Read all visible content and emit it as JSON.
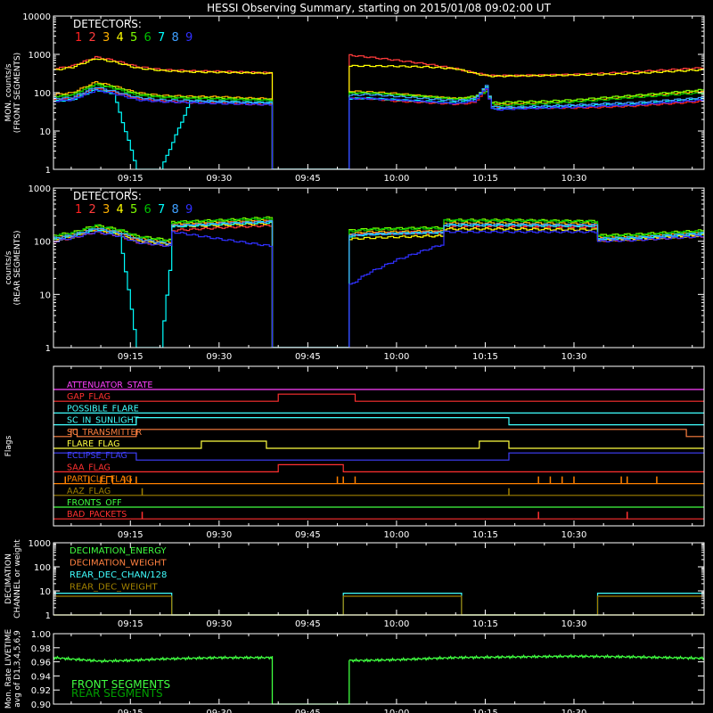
{
  "title": "HESSI Observing Summary, starting on 2015/01/08 09:02:00 UT",
  "time_axis": {
    "start_minute": 542,
    "end_minute": 652,
    "tick_minutes": [
      555,
      570,
      585,
      600,
      615,
      630
    ],
    "tick_labels": [
      "09:15",
      "09:30",
      "09:45",
      "10:00",
      "10:15",
      "10:30"
    ]
  },
  "detector_colors": [
    "#ff2020",
    "#ff3b3b",
    "#ffb000",
    "#ffff00",
    "#7fff00",
    "#00c000",
    "#00ffff",
    "#3fa0ff",
    "#3030ff"
  ],
  "detector_numbers": [
    "1",
    "2",
    "3",
    "4",
    "5",
    "6",
    "7",
    "8",
    "9"
  ],
  "detectors_label": "DETECTORS:",
  "flags": [
    {
      "label": "ATTENUATOR_STATE",
      "color": "#ff40ff"
    },
    {
      "label": "GAP_FLAG",
      "color": "#ff3030"
    },
    {
      "label": "POSSIBLE_FLARE",
      "color": "#40ffff"
    },
    {
      "label": "SC_IN_SUNLIGHT",
      "color": "#40ffff"
    },
    {
      "label": "SC_TRANSMITTER",
      "color": "#ff8040"
    },
    {
      "label": "FLARE_FLAG",
      "color": "#ffff40"
    },
    {
      "label": "ECLIPSE_FLAG",
      "color": "#4040ff"
    },
    {
      "label": "SAA_FLAG",
      "color": "#ff3030"
    },
    {
      "label": "PARTICLE_FLAG",
      "color": "#ff8000"
    },
    {
      "label": "AAZ_FLAG",
      "color": "#a08000"
    },
    {
      "label": "FRONTS_OFF",
      "color": "#40ff40"
    },
    {
      "label": "BAD_PACKETS",
      "color": "#ff3030"
    }
  ],
  "decimation_legend": [
    {
      "label": "DECIMATION_ENERGY",
      "color": "#40ff40"
    },
    {
      "label": "DECIMATION_WEIGHT",
      "color": "#ff8040"
    },
    {
      "label": "REAR_DEC_CHAN/128",
      "color": "#40ffff"
    },
    {
      "label": "REAR_DEC_WEIGHT",
      "color": "#a08000"
    }
  ],
  "livetime_legend": [
    {
      "label": "FRONT SEGMENTS",
      "color": "#40ff40"
    },
    {
      "label": "REAR SEGMENTS",
      "color": "#00a000"
    }
  ],
  "panels": {
    "front": {
      "ylabel_lines": [
        "MON. counts/s",
        "(FRONT SEGMENTS)"
      ],
      "yticks": [
        "1",
        "10",
        "100",
        "1000",
        "10000"
      ]
    },
    "rear": {
      "ylabel_lines": [
        "counts/s",
        "(REAR SEGMENTS)"
      ],
      "yticks": [
        "1",
        "10",
        "100",
        "1000"
      ]
    },
    "flags": {
      "ylabel_lines": [
        "Flags"
      ]
    },
    "decimation": {
      "ylabel_lines": [
        "DECIMATION",
        "CHANNEL or weight"
      ],
      "yticks": [
        "1",
        "10",
        "100",
        "1000"
      ]
    },
    "livetime": {
      "ylabel_lines": [
        "Mon. Rate LIVETIME",
        "avg of D1,3,4,5,6,9"
      ],
      "yticks": [
        "0.90",
        "0.92",
        "0.94",
        "0.96",
        "0.98",
        "1.00"
      ]
    }
  },
  "chart_data": [
    {
      "type": "line",
      "title": "HESSI Observing Summary, starting on 2015/01/08 09:02:00 UT",
      "ylabel": "MON. counts/s (FRONT SEGMENTS)",
      "y_scale": "log",
      "ylim": [
        1,
        10000
      ],
      "x": [
        "09:02",
        "09:05",
        "09:09",
        "09:12",
        "09:16",
        "09:20",
        "09:25",
        "09:30",
        "09:35",
        "09:39",
        "09:39",
        "09:52",
        "09:52",
        "09:55",
        "10:00",
        "10:05",
        "10:10",
        "10:13",
        "10:15",
        "10:16",
        "10:17",
        "10:20",
        "10:25",
        "10:30",
        "10:35",
        "10:40",
        "10:52"
      ],
      "series": [
        {
          "name": "1",
          "values": [
            65,
            70,
            130,
            105,
            70,
            60,
            55,
            55,
            50,
            50,
            1,
            1,
            70,
            70,
            60,
            55,
            50,
            55,
            120,
            45,
            40,
            40,
            40,
            40,
            42,
            45,
            60
          ]
        },
        {
          "name": "2",
          "values": [
            420,
            500,
            850,
            700,
            480,
            400,
            370,
            360,
            340,
            330,
            1,
            1,
            950,
            850,
            700,
            560,
            420,
            330,
            290,
            280,
            280,
            280,
            290,
            300,
            320,
            350,
            450
          ]
        },
        {
          "name": "3",
          "values": [
            90,
            100,
            190,
            150,
            100,
            85,
            80,
            78,
            72,
            70,
            1,
            1,
            110,
            105,
            95,
            80,
            70,
            75,
            110,
            55,
            50,
            52,
            55,
            60,
            70,
            80,
            110
          ]
        },
        {
          "name": "4",
          "values": [
            390,
            460,
            780,
            640,
            440,
            380,
            350,
            340,
            330,
            320,
            1,
            1,
            500,
            500,
            490,
            470,
            420,
            320,
            280,
            270,
            270,
            275,
            280,
            290,
            300,
            320,
            400
          ]
        },
        {
          "name": "5",
          "values": [
            80,
            90,
            170,
            140,
            95,
            80,
            75,
            72,
            68,
            65,
            1,
            1,
            100,
            100,
            90,
            80,
            70,
            80,
            130,
            55,
            55,
            58,
            60,
            65,
            75,
            85,
            120
          ]
        },
        {
          "name": "6",
          "values": [
            75,
            85,
            160,
            130,
            85,
            75,
            70,
            68,
            64,
            62,
            1,
            1,
            95,
            95,
            85,
            75,
            65,
            70,
            110,
            50,
            45,
            48,
            52,
            58,
            65,
            75,
            100
          ]
        },
        {
          "name": "7",
          "values": [
            60,
            65,
            120,
            95,
            1,
            1,
            60,
            58,
            55,
            55,
            1,
            1,
            70,
            72,
            65,
            60,
            55,
            65,
            140,
            40,
            38,
            40,
            42,
            45,
            48,
            50,
            70
          ]
        },
        {
          "name": "8",
          "values": [
            70,
            75,
            140,
            110,
            75,
            65,
            62,
            60,
            56,
            55,
            1,
            1,
            85,
            90,
            80,
            70,
            62,
            70,
            150,
            45,
            42,
            42,
            45,
            48,
            52,
            55,
            75
          ]
        },
        {
          "name": "9",
          "values": [
            60,
            65,
            115,
            95,
            65,
            58,
            55,
            52,
            50,
            48,
            1,
            1,
            70,
            70,
            65,
            58,
            52,
            60,
            130,
            38,
            36,
            38,
            40,
            42,
            45,
            48,
            65
          ]
        }
      ]
    },
    {
      "type": "line",
      "ylabel": "counts/s (REAR SEGMENTS)",
      "y_scale": "log",
      "ylim": [
        1,
        1000
      ],
      "x": [
        "09:02",
        "09:05",
        "09:09",
        "09:13",
        "09:16",
        "09:20",
        "09:22",
        "09:22",
        "09:30",
        "09:39",
        "09:39",
        "09:52",
        "09:52",
        "09:55",
        "10:00",
        "10:05",
        "10:08",
        "10:08",
        "10:20",
        "10:30",
        "10:34",
        "10:34",
        "10:40",
        "10:52"
      ],
      "series": [
        {
          "name": "1",
          "values": [
            110,
            125,
            170,
            140,
            105,
            95,
            90,
            200,
            220,
            240,
            1,
            1,
            130,
            140,
            145,
            150,
            150,
            200,
            200,
            195,
            195,
            110,
            115,
            140
          ]
        },
        {
          "name": "2",
          "values": [
            100,
            115,
            150,
            125,
            95,
            85,
            80,
            160,
            180,
            200,
            1,
            1,
            130,
            140,
            140,
            145,
            145,
            190,
            190,
            185,
            185,
            100,
            105,
            125
          ]
        },
        {
          "name": "3",
          "values": [
            120,
            135,
            185,
            150,
            115,
            100,
            95,
            210,
            230,
            250,
            1,
            1,
            140,
            150,
            150,
            155,
            155,
            220,
            220,
            215,
            215,
            120,
            125,
            150
          ]
        },
        {
          "name": "4",
          "values": [
            105,
            120,
            160,
            130,
            100,
            90,
            85,
            190,
            200,
            220,
            1,
            1,
            110,
            115,
            120,
            125,
            125,
            170,
            170,
            165,
            165,
            105,
            110,
            130
          ]
        },
        {
          "name": "5",
          "values": [
            130,
            145,
            200,
            165,
            125,
            110,
            105,
            230,
            250,
            280,
            1,
            1,
            160,
            170,
            175,
            180,
            180,
            250,
            250,
            240,
            240,
            130,
            135,
            160
          ]
        },
        {
          "name": "6",
          "values": [
            125,
            140,
            195,
            160,
            120,
            105,
            100,
            225,
            245,
            270,
            1,
            1,
            155,
            165,
            170,
            175,
            175,
            245,
            245,
            235,
            235,
            125,
            130,
            155
          ]
        },
        {
          "name": "7",
          "values": [
            110,
            125,
            170,
            140,
            1,
            1,
            90,
            190,
            210,
            230,
            1,
            1,
            125,
            135,
            140,
            145,
            145,
            200,
            200,
            195,
            195,
            110,
            115,
            140
          ]
        },
        {
          "name": "8",
          "values": [
            115,
            130,
            175,
            145,
            110,
            95,
            90,
            195,
            215,
            235,
            1,
            1,
            130,
            135,
            140,
            145,
            145,
            205,
            205,
            200,
            200,
            112,
            118,
            142
          ]
        },
        {
          "name": "9",
          "values": [
            100,
            115,
            150,
            125,
            95,
            85,
            80,
            150,
            110,
            80,
            1,
            1,
            15,
            25,
            45,
            70,
            90,
            150,
            150,
            150,
            150,
            100,
            105,
            125
          ]
        }
      ]
    },
    {
      "type": "line",
      "ylabel": "DECIMATION CHANNEL or weight",
      "y_scale": "log",
      "ylim": [
        1,
        1000
      ],
      "x": [
        "09:02",
        "09:22",
        "09:22",
        "09:51",
        "09:51",
        "10:11",
        "10:11",
        "10:34",
        "10:34",
        "10:52"
      ],
      "series": [
        {
          "name": "REAR_DEC_CHAN/128",
          "values": [
            8,
            8,
            1,
            1,
            8,
            8,
            1,
            1,
            8,
            8
          ]
        },
        {
          "name": "REAR_DEC_WEIGHT",
          "values": [
            6,
            6,
            1,
            1,
            6,
            6,
            1,
            1,
            6,
            6
          ]
        },
        {
          "name": "DECIMATION_ENERGY",
          "values": [
            1,
            1,
            1,
            1,
            1,
            1,
            1,
            1,
            1,
            1
          ]
        },
        {
          "name": "DECIMATION_WEIGHT",
          "values": [
            1,
            1,
            1,
            1,
            1,
            1,
            1,
            1,
            1,
            1
          ]
        }
      ]
    },
    {
      "type": "line",
      "ylabel": "Mon. Rate LIVETIME avg of D1,3,4,5,6,9",
      "ylim": [
        0.9,
        1.0
      ],
      "x": [
        "09:02",
        "09:05",
        "09:10",
        "09:15",
        "09:20",
        "09:30",
        "09:39",
        "09:39",
        "09:52",
        "09:52",
        "09:55",
        "10:00",
        "10:10",
        "10:20",
        "10:30",
        "10:40",
        "10:52"
      ],
      "series": [
        {
          "name": "FRONT SEGMENTS",
          "values": [
            0.966,
            0.964,
            0.961,
            0.962,
            0.964,
            0.966,
            0.966,
            0.9,
            0.9,
            0.962,
            0.962,
            0.963,
            0.966,
            0.967,
            0.968,
            0.967,
            0.965
          ]
        }
      ]
    }
  ],
  "flag_data": {
    "gap": [
      [
        580,
        593
      ]
    ],
    "sunlight": [
      [
        556,
        619
      ]
    ],
    "transmitter": [
      [
        545,
        546
      ],
      [
        556,
        649
      ]
    ],
    "flare": [
      [
        567,
        578
      ],
      [
        614,
        619
      ]
    ],
    "eclipse": [
      [
        556,
        619
      ]
    ],
    "saa": [
      [
        580,
        591
      ]
    ],
    "particle_spikes": [
      544,
      548,
      550,
      552,
      554,
      555,
      556,
      590,
      591,
      593,
      624,
      626,
      628,
      630,
      638,
      639,
      644
    ],
    "particle_intervals": [
      [
        551,
        552
      ]
    ],
    "aaz_spikes": [
      557,
      619
    ],
    "bad_packet_spikes": [
      557,
      624,
      639
    ]
  }
}
